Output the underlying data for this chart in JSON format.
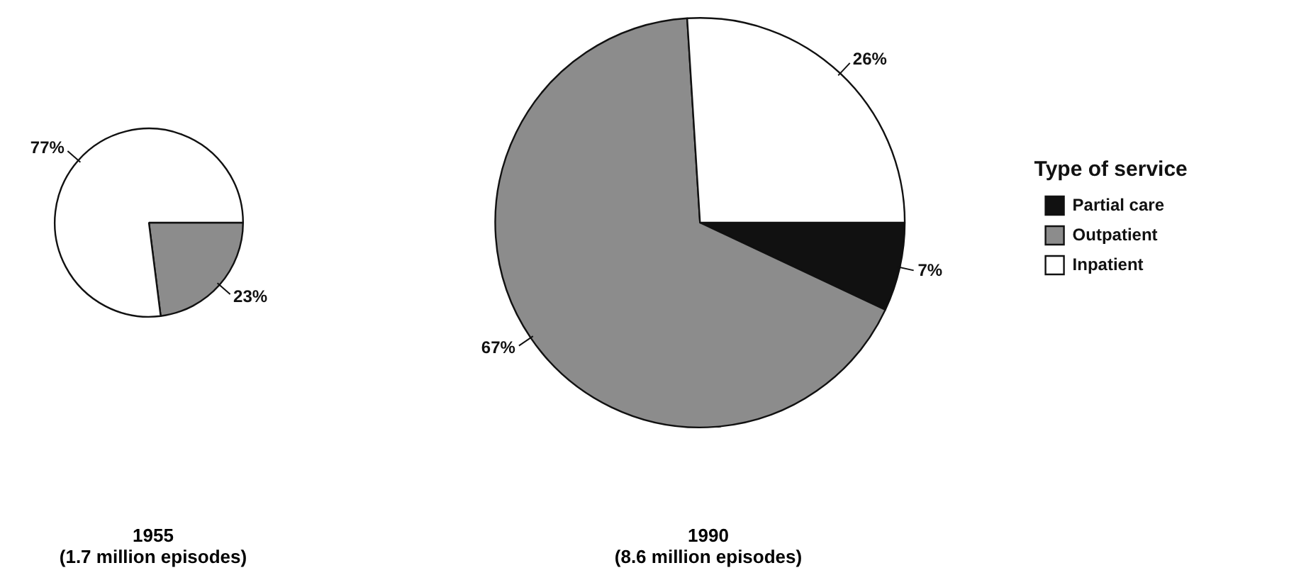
{
  "chart_data": [
    {
      "type": "pie",
      "title": "1955",
      "subtitle": "(1.7 million episodes)",
      "categories": [
        null,
        null
      ],
      "values": [
        23,
        77
      ],
      "colors": [
        "#8c8c8c",
        "#ffffff"
      ],
      "value_labels": [
        "23%",
        "77%"
      ],
      "legend": false
    },
    {
      "type": "pie",
      "title": "1990",
      "subtitle": "(8.6 million episodes)",
      "categories": [
        "Partial care",
        "Outpatient",
        "Inpatient"
      ],
      "values": [
        7,
        67,
        26
      ],
      "colors": [
        "#111111",
        "#8c8c8c",
        "#ffffff"
      ],
      "value_labels": [
        "7%",
        "67%",
        "26%"
      ],
      "legend": "right",
      "legend_title": "Type of service"
    }
  ]
}
